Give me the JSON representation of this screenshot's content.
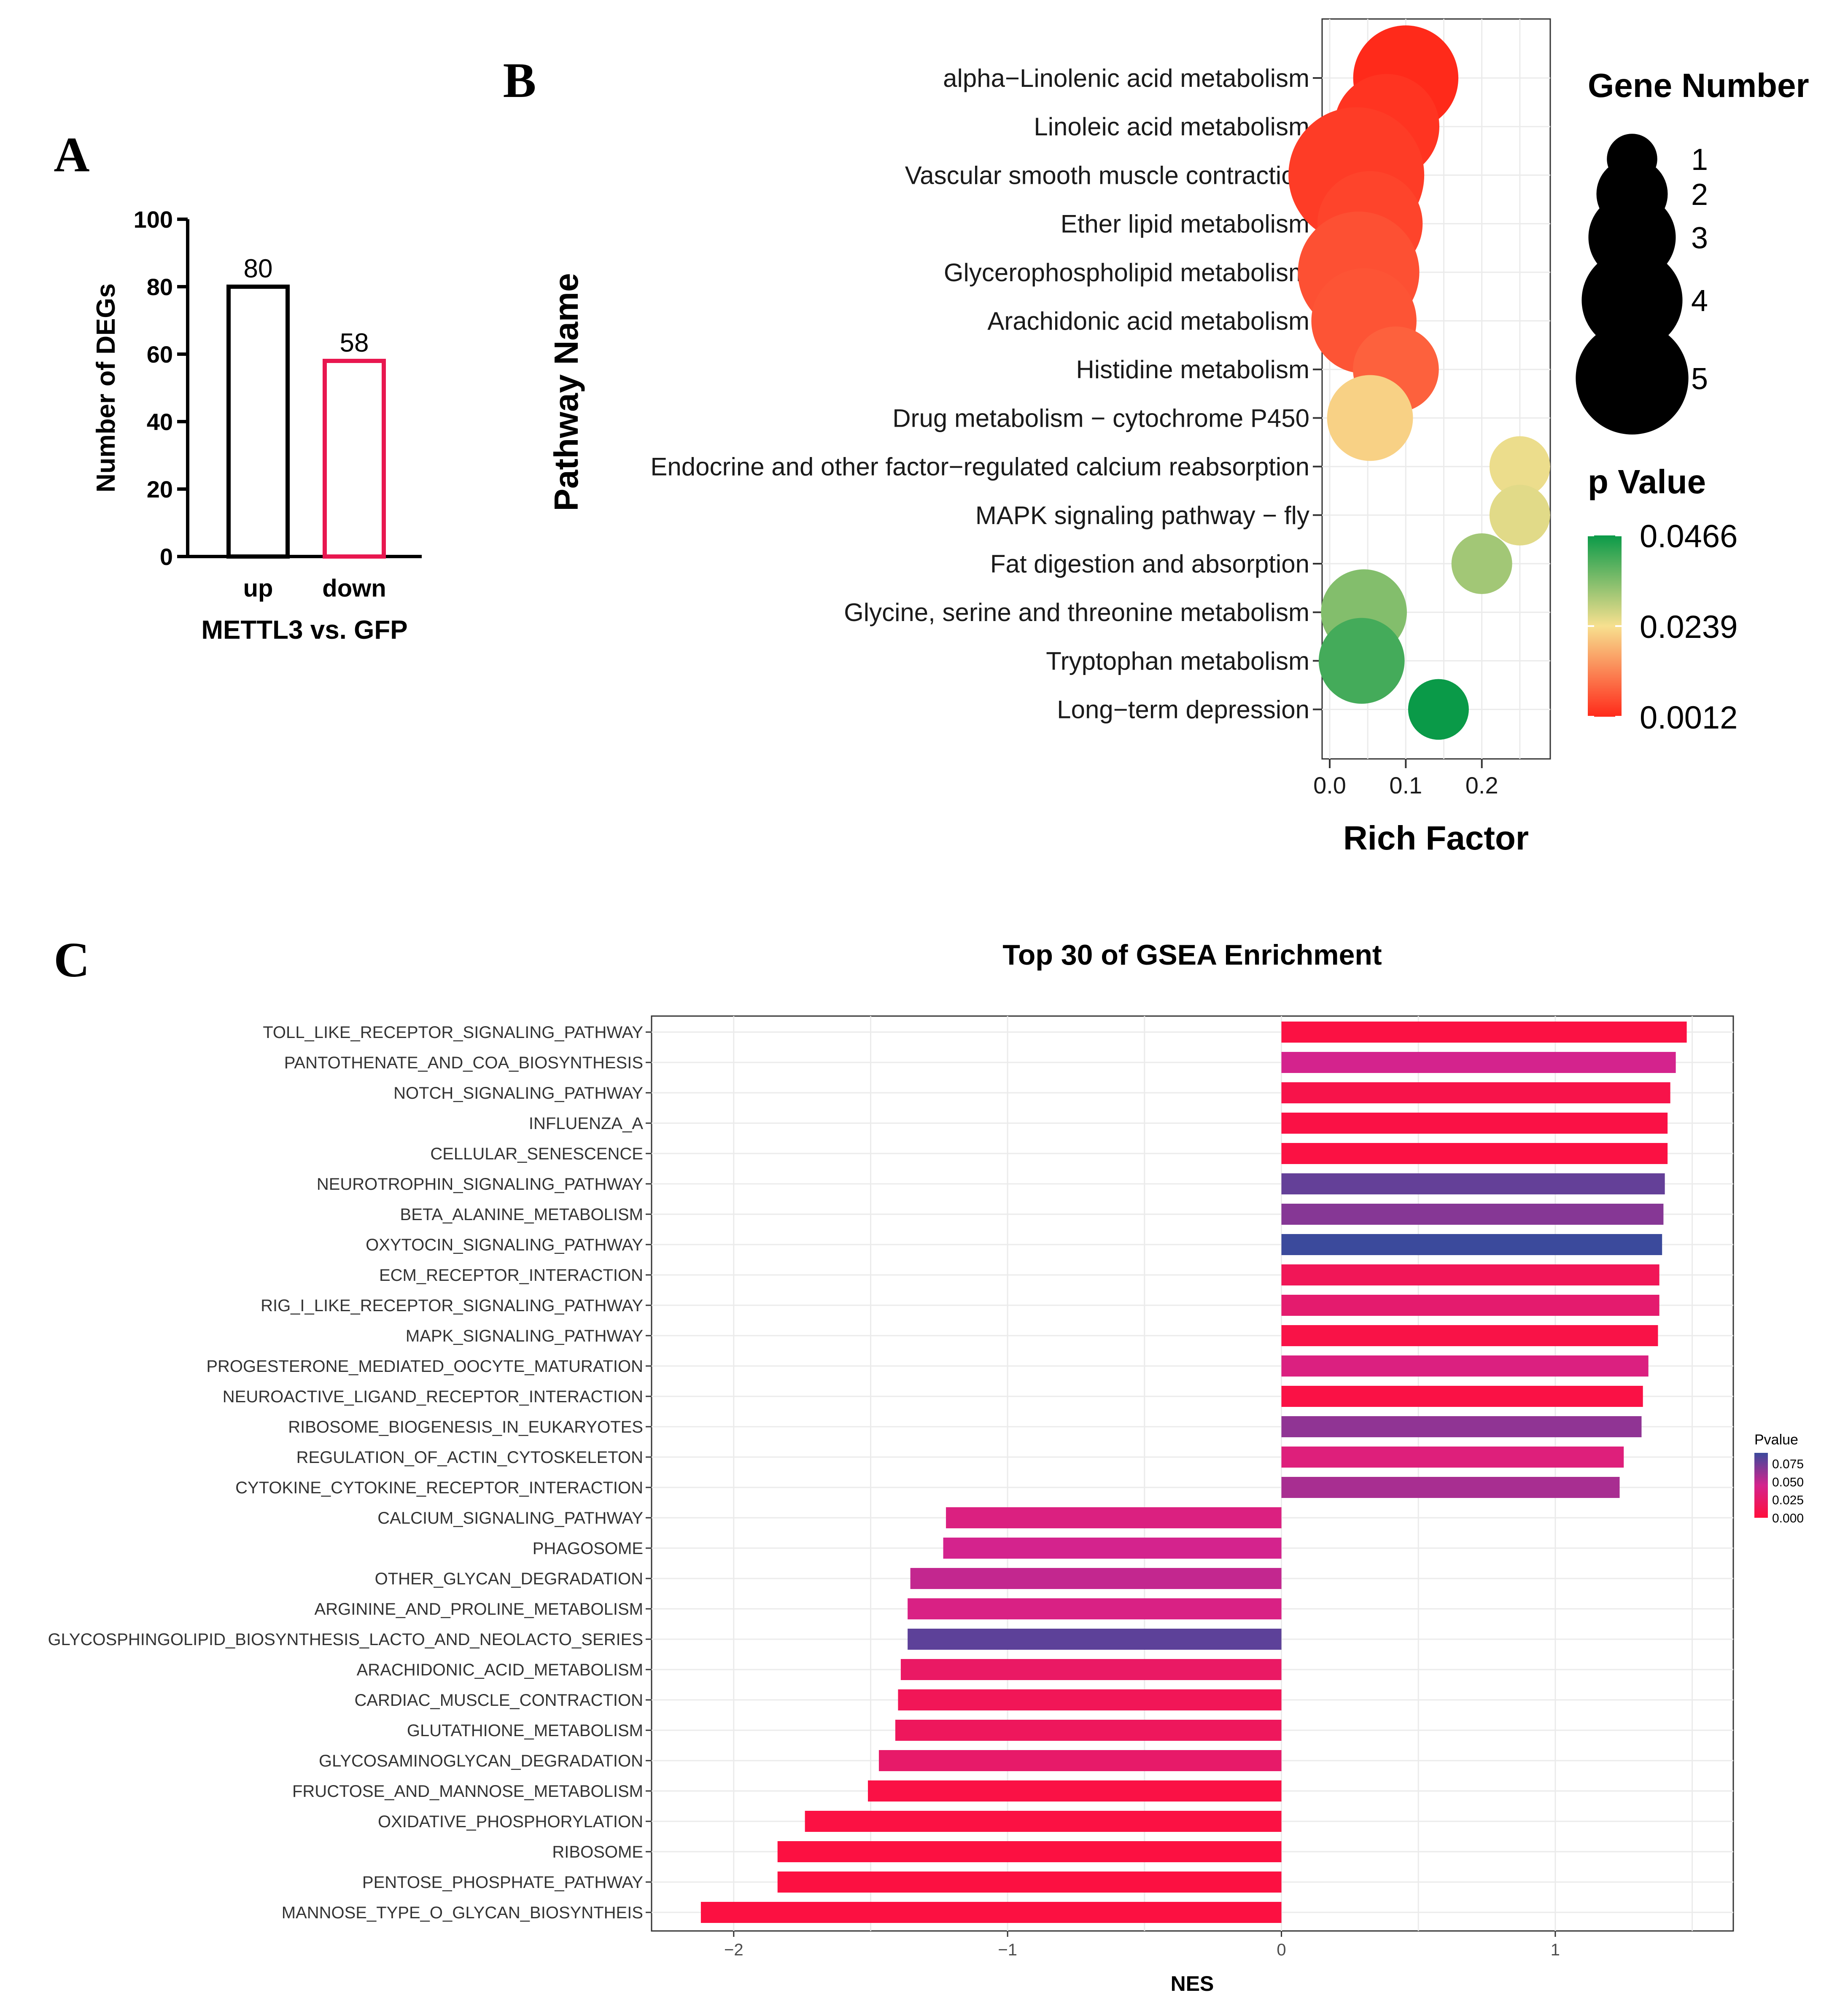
{
  "panel_labels": {
    "a": "A",
    "b": "B",
    "c": "C"
  },
  "chart_data": [
    {
      "id": "A",
      "type": "bar",
      "categories": [
        "up",
        "down"
      ],
      "values": [
        80,
        58
      ],
      "data_labels": [
        "80",
        "58"
      ],
      "bar_colors": [
        "#000000",
        "#e8174f"
      ],
      "ylabel": "Number of DEGs",
      "xlabel": "METTL3 vs. GFP",
      "ylim": [
        0,
        100
      ],
      "yticks": [
        0,
        20,
        40,
        60,
        80,
        100
      ]
    },
    {
      "id": "B",
      "type": "scatter",
      "xlabel": "Rich Factor",
      "ylabel": "Pathway Name",
      "xlim": [
        -0.01,
        0.29
      ],
      "xticks": [
        0.0,
        0.1,
        0.2
      ],
      "xtick_labels": [
        "0.0",
        "0.1",
        "0.2"
      ],
      "grid": true,
      "points": [
        {
          "pathway": "alpha−Linolenic acid metabolism",
          "rich_factor": 0.1,
          "gene_number": 3,
          "p_value": 0.0012
        },
        {
          "pathway": "Linoleic acid metabolism",
          "rich_factor": 0.075,
          "gene_number": 3,
          "p_value": 0.0025
        },
        {
          "pathway": "Vascular smooth muscle contraction",
          "rich_factor": 0.035,
          "gene_number": 5,
          "p_value": 0.0035
        },
        {
          "pathway": "Ether lipid metabolism",
          "rich_factor": 0.053,
          "gene_number": 3,
          "p_value": 0.0045
        },
        {
          "pathway": "Glycerophospholipid metabolism",
          "rich_factor": 0.038,
          "gene_number": 4,
          "p_value": 0.006
        },
        {
          "pathway": "Arachidonic acid metabolism",
          "rich_factor": 0.045,
          "gene_number": 3,
          "p_value": 0.0065
        },
        {
          "pathway": "Histidine metabolism",
          "rich_factor": 0.087,
          "gene_number": 2,
          "p_value": 0.008
        },
        {
          "pathway": "Drug metabolism − cytochrome P450",
          "rich_factor": 0.053,
          "gene_number": 2,
          "p_value": 0.022
        },
        {
          "pathway": "Endocrine and other factor−regulated calcium reabsorption",
          "rich_factor": 0.25,
          "gene_number": 1,
          "p_value": 0.025
        },
        {
          "pathway": "MAPK signaling pathway − fly",
          "rich_factor": 0.25,
          "gene_number": 1,
          "p_value": 0.026
        },
        {
          "pathway": "Fat digestion and absorption",
          "rich_factor": 0.2,
          "gene_number": 1,
          "p_value": 0.032
        },
        {
          "pathway": "Glycine, serine and threonine metabolism",
          "rich_factor": 0.045,
          "gene_number": 2,
          "p_value": 0.035
        },
        {
          "pathway": "Tryptophan metabolism",
          "rich_factor": 0.042,
          "gene_number": 2,
          "p_value": 0.041
        },
        {
          "pathway": "Long−term depression",
          "rich_factor": 0.143,
          "gene_number": 1,
          "p_value": 0.0466
        }
      ],
      "size_legend": {
        "title": "Gene Number",
        "values": [
          1,
          2,
          3,
          4,
          5
        ],
        "labels": [
          "1",
          "2",
          "3",
          "4",
          "5"
        ]
      },
      "color_legend": {
        "title": "p Value",
        "ticks": [
          0.0466,
          0.0239,
          0.0012
        ],
        "labels": [
          "0.0466",
          "0.0239",
          "0.0012"
        ],
        "colors": {
          "low": "#ff2a1a",
          "mid": "#f7e08f",
          "high": "#0a9a48"
        }
      }
    },
    {
      "id": "C",
      "type": "bar",
      "orientation": "horizontal",
      "title": "Top 30 of GSEA Enrichment",
      "xlabel": "NES",
      "xlim": [
        -2.3,
        1.65
      ],
      "xticks": [
        -2,
        -1,
        0,
        1
      ],
      "xtick_labels": [
        "−2",
        "−1",
        "0",
        "1"
      ],
      "grid": true,
      "categories": [
        "TOLL_LIKE_RECEPTOR_SIGNALING_PATHWAY",
        "PANTOTHENATE_AND_COA_BIOSYNTHESIS",
        "NOTCH_SIGNALING_PATHWAY",
        "INFLUENZA_A",
        "CELLULAR_SENESCENCE",
        "NEUROTROPHIN_SIGNALING_PATHWAY",
        "BETA_ALANINE_METABOLISM",
        "OXYTOCIN_SIGNALING_PATHWAY",
        "ECM_RECEPTOR_INTERACTION",
        "RIG_I_LIKE_RECEPTOR_SIGNALING_PATHWAY",
        "MAPK_SIGNALING_PATHWAY",
        "PROGESTERONE_MEDIATED_OOCYTE_MATURATION",
        "NEUROACTIVE_LIGAND_RECEPTOR_INTERACTION",
        "RIBOSOME_BIOGENESIS_IN_EUKARYOTES",
        "REGULATION_OF_ACTIN_CYTOSKELETON",
        "CYTOKINE_CYTOKINE_RECEPTOR_INTERACTION",
        "CALCIUM_SIGNALING_PATHWAY",
        "PHAGOSOME",
        "OTHER_GLYCAN_DEGRADATION",
        "ARGININE_AND_PROLINE_METABOLISM",
        "GLYCOSPHINGOLIPID_BIOSYNTHESIS_LACTO_AND_NEOLACTO_SERIES",
        "ARACHIDONIC_ACID_METABOLISM",
        "CARDIAC_MUSCLE_CONTRACTION",
        "GLUTATHIONE_METABOLISM",
        "GLYCOSAMINOGLYCAN_DEGRADATION",
        "FRUCTOSE_AND_MANNOSE_METABOLISM",
        "OXIDATIVE_PHOSPHORYLATION",
        "RIBOSOME",
        "PENTOSE_PHOSPHATE_PATHWAY",
        "MANNOSE_TYPE_O_GLYCAN_BIOSYNTHEIS"
      ],
      "values": [
        1.48,
        1.44,
        1.42,
        1.41,
        1.41,
        1.4,
        1.395,
        1.39,
        1.38,
        1.38,
        1.375,
        1.34,
        1.32,
        1.315,
        1.25,
        1.235,
        -1.225,
        -1.235,
        -1.355,
        -1.365,
        -1.365,
        -1.39,
        -1.4,
        -1.41,
        -1.47,
        -1.51,
        -1.74,
        -1.84,
        -1.84,
        -2.12
      ],
      "pvalues": [
        0.004,
        0.045,
        0.008,
        0.005,
        0.004,
        0.078,
        0.068,
        0.09,
        0.015,
        0.028,
        0.006,
        0.038,
        0.005,
        0.065,
        0.035,
        0.058,
        0.038,
        0.045,
        0.05,
        0.04,
        0.08,
        0.022,
        0.015,
        0.018,
        0.025,
        0.005,
        0.004,
        0.003,
        0.003,
        0.003
      ],
      "legend": {
        "title": "Pvalue",
        "ticks": [
          0.075,
          0.05,
          0.025,
          0.0
        ],
        "labels": [
          "0.075",
          "0.050",
          "0.025",
          "0.000"
        ],
        "range": [
          0,
          0.09
        ],
        "colors": {
          "low": "#ff0f3c",
          "mid": "#d4238d",
          "high": "#3b4a9c"
        }
      }
    }
  ]
}
